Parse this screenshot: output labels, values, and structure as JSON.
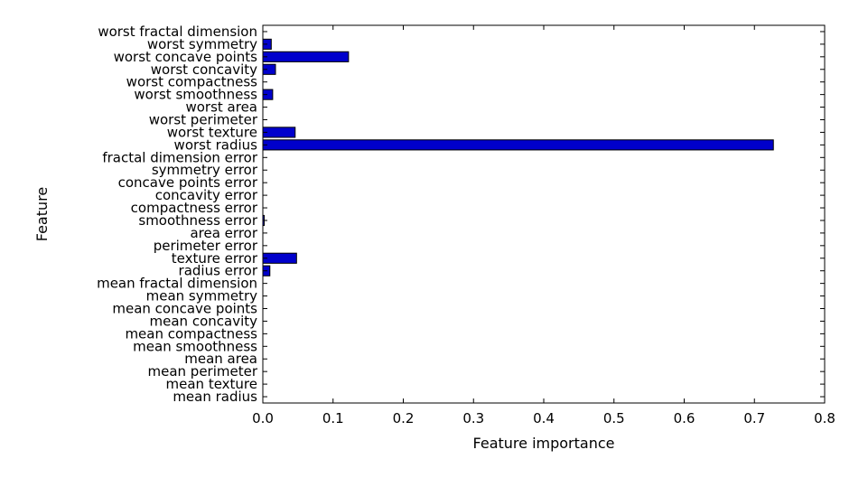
{
  "chart_data": {
    "type": "bar",
    "orientation": "horizontal",
    "xlabel": "Feature importance",
    "ylabel": "Feature",
    "xlim": [
      0.0,
      0.8
    ],
    "xticks": [
      0.0,
      0.1,
      0.2,
      0.3,
      0.4,
      0.5,
      0.6,
      0.7,
      0.8
    ],
    "xtick_labels": [
      "0.0",
      "0.1",
      "0.2",
      "0.3",
      "0.4",
      "0.5",
      "0.6",
      "0.7",
      "0.8"
    ],
    "grid": false,
    "bar_color": "#0000cc",
    "categories": [
      "mean radius",
      "mean texture",
      "mean perimeter",
      "mean area",
      "mean smoothness",
      "mean compactness",
      "mean concavity",
      "mean concave points",
      "mean symmetry",
      "mean fractal dimension",
      "radius error",
      "texture error",
      "perimeter error",
      "area error",
      "smoothness error",
      "compactness error",
      "concavity error",
      "concave points error",
      "symmetry error",
      "fractal dimension error",
      "worst radius",
      "worst texture",
      "worst perimeter",
      "worst area",
      "worst smoothness",
      "worst compactness",
      "worst concavity",
      "worst concave points",
      "worst symmetry",
      "worst fractal dimension"
    ],
    "values": [
      0,
      0,
      0,
      0,
      0,
      0,
      0,
      0,
      0,
      0,
      0.01,
      0.048,
      0,
      0,
      0.002,
      0,
      0,
      0,
      0,
      0,
      0.727,
      0.046,
      0,
      0,
      0.014,
      0,
      0.018,
      0.122,
      0.012,
      0
    ]
  }
}
